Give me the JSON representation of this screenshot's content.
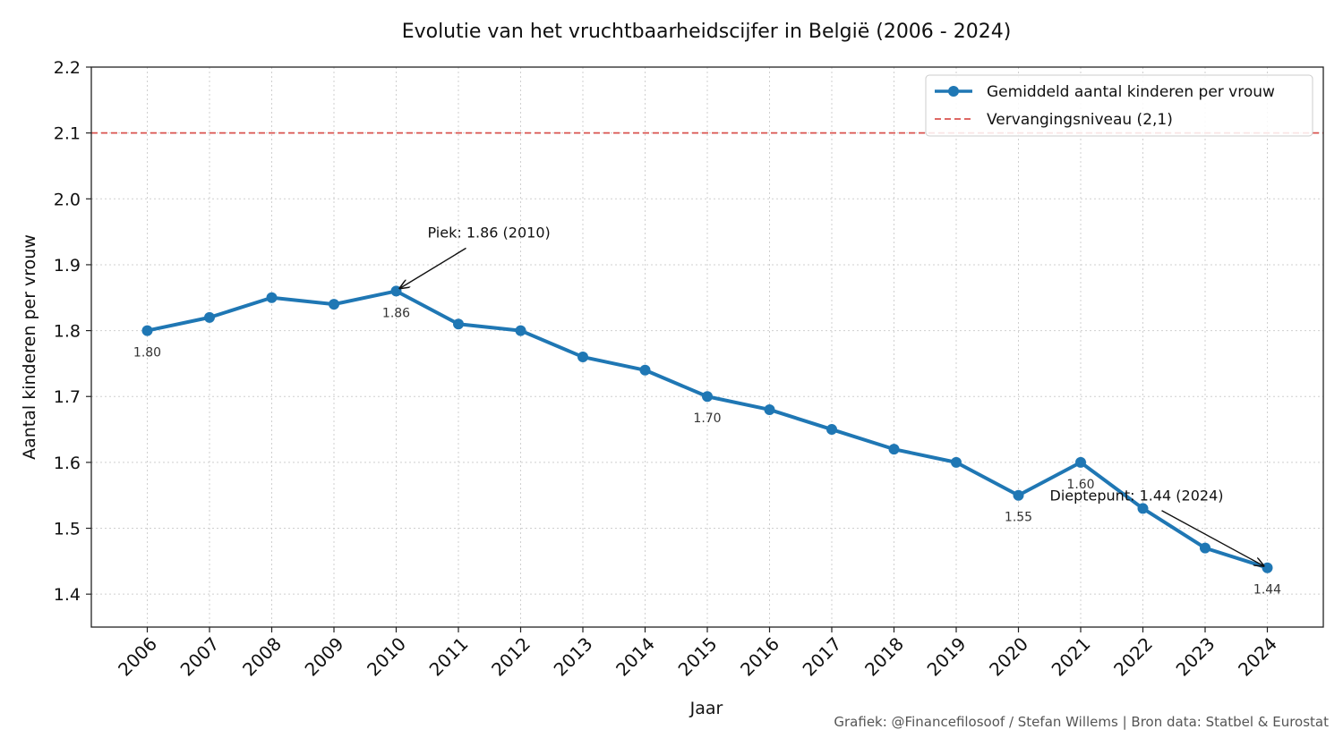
{
  "chart_data": {
    "type": "line",
    "title": "Evolutie van het vruchtbaarheidscijfer in België (2006 - 2024)",
    "xlabel": "Jaar",
    "ylabel": "Aantal kinderen per vrouw",
    "x": [
      "2006",
      "2007",
      "2008",
      "2009",
      "2010",
      "2011",
      "2012",
      "2013",
      "2014",
      "2015",
      "2016",
      "2017",
      "2018",
      "2019",
      "2020",
      "2021",
      "2022",
      "2023",
      "2024"
    ],
    "ylim": [
      1.35,
      2.2
    ],
    "yticks": [
      "1.4",
      "1.5",
      "1.6",
      "1.7",
      "1.8",
      "1.9",
      "2.0",
      "2.1",
      "2.2"
    ],
    "grid": true,
    "legend_position": "top-right",
    "series": [
      {
        "name": "Gemiddeld aantal kinderen per vrouw",
        "color": "#1f77b4",
        "values": [
          1.8,
          1.82,
          1.85,
          1.84,
          1.86,
          1.81,
          1.8,
          1.76,
          1.74,
          1.7,
          1.68,
          1.65,
          1.62,
          1.6,
          1.55,
          1.6,
          1.53,
          1.47,
          1.44
        ]
      }
    ],
    "reference_line": {
      "name": "Vervangingsniveau (2,1)",
      "value": 2.1,
      "color": "#d9534f"
    },
    "data_labels": [
      {
        "year": "2006",
        "value": 1.8,
        "text": "1.80"
      },
      {
        "year": "2010",
        "value": 1.86,
        "text": "1.86"
      },
      {
        "year": "2015",
        "value": 1.7,
        "text": "1.70"
      },
      {
        "year": "2020",
        "value": 1.55,
        "text": "1.55"
      },
      {
        "year": "2021",
        "value": 1.6,
        "text": "1.60"
      },
      {
        "year": "2024",
        "value": 1.44,
        "text": "1.44"
      }
    ],
    "annotations": [
      {
        "text": "Piek: 1.86 (2010)",
        "year": "2010",
        "value": 1.86
      },
      {
        "text": "Dieptepunt: 1.44 (2024)",
        "year": "2024",
        "value": 1.44
      }
    ],
    "credit": "Grafiek: @Financefilosoof / Stefan Willems | Bron data: Statbel & Eurostat"
  }
}
